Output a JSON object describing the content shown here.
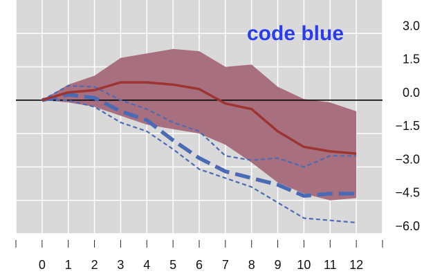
{
  "chart_data": {
    "type": "line",
    "x": [
      0,
      1,
      2,
      3,
      4,
      5,
      6,
      7,
      8,
      9,
      10,
      11,
      12
    ],
    "xlim": [
      -1,
      13
    ],
    "ylim": [
      -6.0,
      4.5
    ],
    "xticks": [
      "0",
      "1",
      "2",
      "3",
      "4",
      "5",
      "6",
      "7",
      "8",
      "9",
      "10",
      "11",
      "12"
    ],
    "yticks": [
      "3.0",
      "1.5",
      "0.0",
      "−1.5",
      "−3.0",
      "−4.5",
      "−6.0"
    ],
    "ytick_values": [
      3.0,
      1.5,
      0.0,
      -1.5,
      -3.0,
      -4.5,
      -6.0
    ],
    "grid": true,
    "annotation": {
      "text": "code blue",
      "color": "#2a3cf0"
    },
    "colors": {
      "background": "#d9d9d9",
      "grid": "#ffffff",
      "band": "#a8707f",
      "central": "#9c3432",
      "dashed": "#4a6ab5",
      "zero_line": "#000000"
    },
    "band": {
      "upper": [
        0.0,
        0.7,
        1.1,
        1.9,
        2.1,
        2.3,
        2.2,
        1.5,
        1.6,
        0.6,
        0.05,
        -0.1,
        -0.5
      ],
      "lower": [
        0.0,
        -0.1,
        -0.3,
        -0.7,
        -1.1,
        -1.3,
        -1.5,
        -2.0,
        -2.8,
        -3.7,
        -4.2,
        -4.5,
        -4.4
      ]
    },
    "series": [
      {
        "values": [
          0.0,
          0.35,
          0.45,
          0.8,
          0.8,
          0.7,
          0.5,
          -0.15,
          -0.4,
          -1.4,
          -2.1,
          -2.3,
          -2.4
        ],
        "style": "solid"
      },
      {
        "values": [
          0.0,
          0.25,
          0.1,
          -0.5,
          -0.9,
          -1.8,
          -2.6,
          -3.2,
          -3.5,
          -3.8,
          -4.3,
          -4.2,
          -4.2
        ],
        "style": "long-dash"
      },
      {
        "values": [
          0.0,
          0.65,
          0.6,
          0.0,
          -0.4,
          -1.0,
          -1.4,
          -2.5,
          -2.7,
          -2.6,
          -3.0,
          -2.5,
          -2.5
        ],
        "style": "short-dash"
      },
      {
        "values": [
          0.0,
          0.0,
          -0.3,
          -1.0,
          -1.4,
          -2.2,
          -3.1,
          -3.5,
          -3.9,
          -4.6,
          -5.3,
          -5.4,
          -5.5
        ],
        "style": "short-dash"
      }
    ]
  }
}
